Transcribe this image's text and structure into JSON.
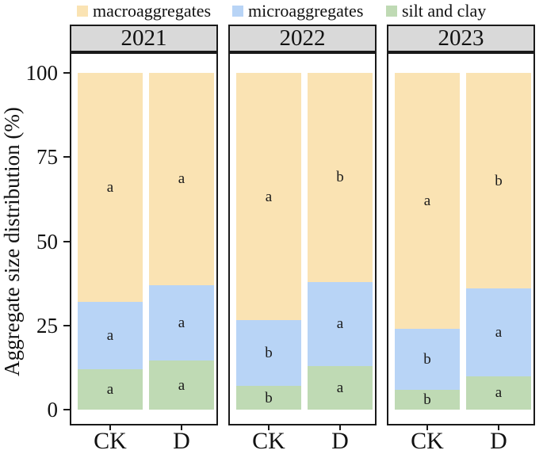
{
  "figure": {
    "y_axis": {
      "title": "Aggregate size distribution (%)",
      "ticks": [
        0,
        25,
        50,
        75,
        100
      ],
      "range": [
        0,
        100
      ]
    },
    "x_categories": [
      "CK",
      "D"
    ],
    "facet_labels": [
      "2021",
      "2022",
      "2023"
    ],
    "colors": {
      "macroaggregates": "#FAE3B3",
      "microaggregates": "#B8D4F6",
      "silt and clay": "#BFDAB4",
      "strip_background": "#D9D9D9",
      "border": "#1A1A1A"
    }
  },
  "legend": {
    "items": [
      {
        "name": "macroaggregates-swatch",
        "label": "macroaggregates",
        "color": "#FAE3B3"
      },
      {
        "name": "microaggregates-swatch",
        "label": "microaggregates",
        "color": "#B8D4F6"
      },
      {
        "name": "silt-and-clay-swatch",
        "label": "silt and clay",
        "color": "#BFDAB4"
      }
    ]
  },
  "chart_data": {
    "type": "bar",
    "stacked": true,
    "percent": true,
    "title": "",
    "xlabel": "",
    "ylabel": "Aggregate size distribution (%)",
    "ylim": [
      0,
      100
    ],
    "legend_position": "top",
    "grid": false,
    "facets": [
      {
        "year": "2021",
        "bars": [
          {
            "category": "CK",
            "segments": [
              {
                "name": "macroaggregates",
                "value": 68,
                "letter": "a"
              },
              {
                "name": "microaggregates",
                "value": 20,
                "letter": "a"
              },
              {
                "name": "silt and clay",
                "value": 12,
                "letter": "a"
              }
            ]
          },
          {
            "category": "D",
            "segments": [
              {
                "name": "macroaggregates",
                "value": 63,
                "letter": "a"
              },
              {
                "name": "microaggregates",
                "value": 22.5,
                "letter": "a"
              },
              {
                "name": "silt and clay",
                "value": 14.5,
                "letter": "a"
              }
            ]
          }
        ]
      },
      {
        "year": "2022",
        "bars": [
          {
            "category": "CK",
            "segments": [
              {
                "name": "macroaggregates",
                "value": 73.5,
                "letter": "a"
              },
              {
                "name": "microaggregates",
                "value": 19.5,
                "letter": "b"
              },
              {
                "name": "silt and clay",
                "value": 7,
                "letter": "b"
              }
            ]
          },
          {
            "category": "D",
            "segments": [
              {
                "name": "macroaggregates",
                "value": 62,
                "letter": "b"
              },
              {
                "name": "microaggregates",
                "value": 25,
                "letter": "a"
              },
              {
                "name": "silt and clay",
                "value": 13,
                "letter": "a"
              }
            ]
          }
        ]
      },
      {
        "year": "2023",
        "bars": [
          {
            "category": "CK",
            "segments": [
              {
                "name": "macroaggregates",
                "value": 76,
                "letter": "a"
              },
              {
                "name": "microaggregates",
                "value": 18,
                "letter": "b"
              },
              {
                "name": "silt and clay",
                "value": 6,
                "letter": "b"
              }
            ]
          },
          {
            "category": "D",
            "segments": [
              {
                "name": "macroaggregates",
                "value": 64,
                "letter": "b"
              },
              {
                "name": "microaggregates",
                "value": 26,
                "letter": "a"
              },
              {
                "name": "silt and clay",
                "value": 10,
                "letter": "a"
              }
            ]
          }
        ]
      }
    ]
  }
}
